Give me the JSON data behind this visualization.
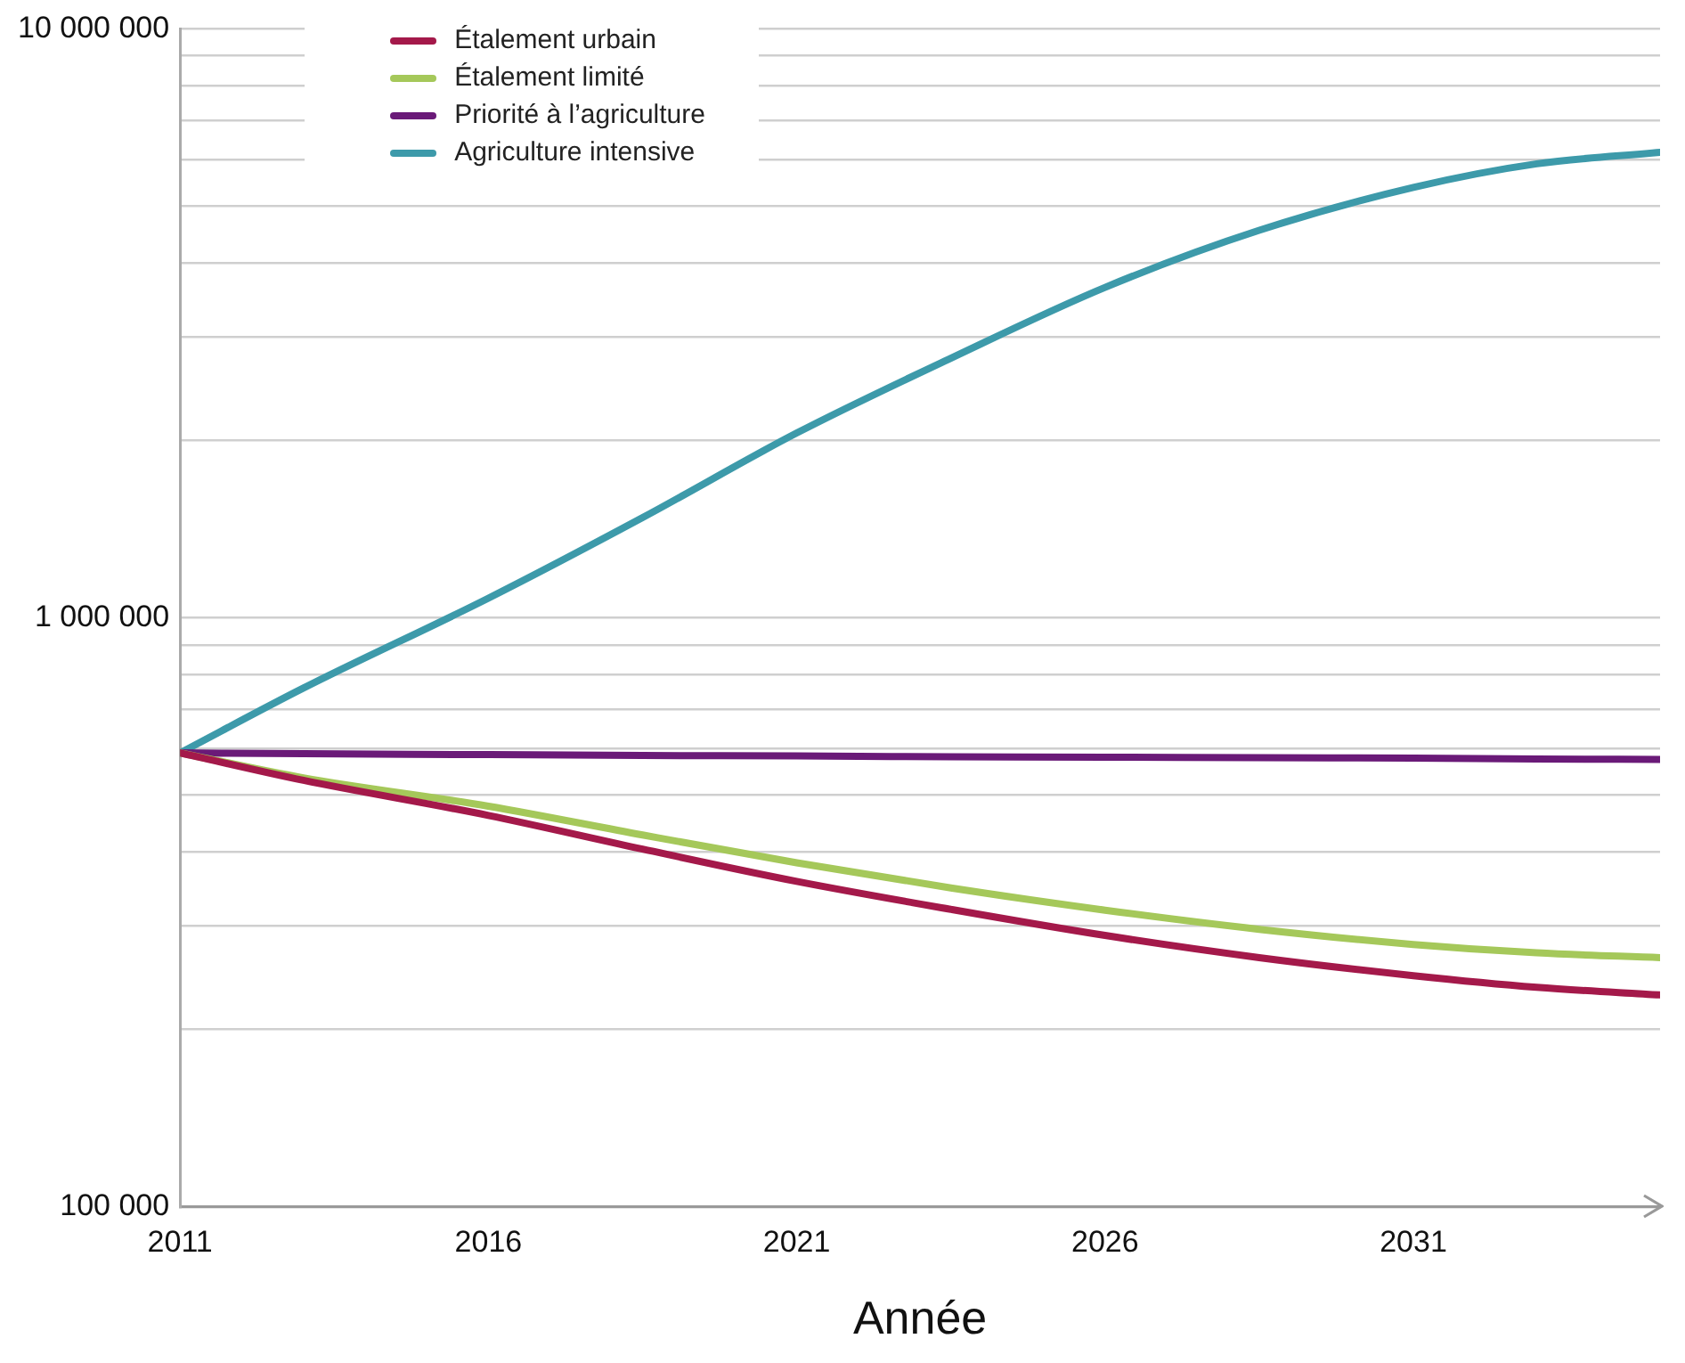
{
  "chart_data": {
    "type": "line",
    "xlabel": "Année",
    "log": "y",
    "grid": "y",
    "legend": "top",
    "marker": "none",
    "line_style": "solid",
    "x": [
      2011,
      2013,
      2016,
      2018.5,
      2021,
      2023.5,
      2026,
      2028.5,
      2031,
      2033,
      2035
    ],
    "xlim": [
      2011,
      2035
    ],
    "xticks": [
      2011,
      2016,
      2021,
      2026,
      2031
    ],
    "ylim": [
      100000,
      10000000
    ],
    "yticks": [
      {
        "value": 100000,
        "label": "100 000"
      },
      {
        "value": 200000,
        "label": null
      },
      {
        "value": 300000,
        "label": null
      },
      {
        "value": 400000,
        "label": null
      },
      {
        "value": 500000,
        "label": null
      },
      {
        "value": 600000,
        "label": null
      },
      {
        "value": 700000,
        "label": null
      },
      {
        "value": 800000,
        "label": null
      },
      {
        "value": 900000,
        "label": null
      },
      {
        "value": 1000000,
        "label": "1 000 000"
      },
      {
        "value": 2000000,
        "label": null
      },
      {
        "value": 3000000,
        "label": null
      },
      {
        "value": 4000000,
        "label": null
      },
      {
        "value": 5000000,
        "label": null
      },
      {
        "value": 6000000,
        "label": null
      },
      {
        "value": 7000000,
        "label": null
      },
      {
        "value": 8000000,
        "label": null
      },
      {
        "value": 9000000,
        "label": null
      },
      {
        "value": 10000000,
        "label": "10 000 000"
      }
    ],
    "series": [
      {
        "name": "Étalement urbain",
        "color": "#a4194a",
        "values": [
          590000,
          530000,
          462000,
          405000,
          357000,
          320000,
          289000,
          265000,
          247000,
          236000,
          229000
        ]
      },
      {
        "name": "Étalement limité",
        "color": "#a5c85a",
        "values": [
          590000,
          535000,
          479000,
          428000,
          384000,
          348000,
          319000,
          296000,
          279000,
          270000,
          265000
        ]
      },
      {
        "name": "Priorité à l’agriculture",
        "color": "#6a1a78",
        "values": [
          590000,
          588000,
          586000,
          584000,
          583000,
          581000,
          580000,
          579000,
          578000,
          576000,
          575000
        ]
      },
      {
        "name": "Agriculture intensive",
        "color": "#3d9aaa",
        "values": [
          590000,
          760000,
          1080000,
          1480000,
          2060000,
          2760000,
          3640000,
          4550000,
          5380000,
          5900000,
          6170000
        ]
      }
    ]
  }
}
